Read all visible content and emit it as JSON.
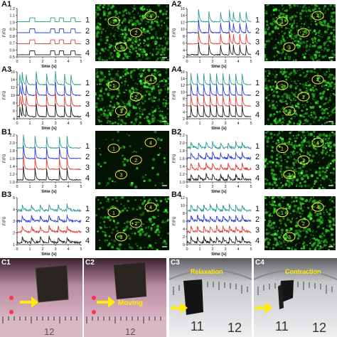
{
  "panels": [
    {
      "id": "A1",
      "label": "A1",
      "ylabel": "F/F0",
      "xlabel": "time (s)",
      "yticks": [
        "1.2",
        "1.1",
        "1.0",
        "0.9",
        "0.8",
        "0.7",
        "0.6",
        "0.5"
      ],
      "xticks": [
        "0",
        "1",
        "2",
        "3",
        "4",
        "5"
      ],
      "trace_numbers": [
        "1",
        "2",
        "3",
        "4"
      ],
      "cells": [
        "1",
        "2",
        "3",
        "4"
      ],
      "peaks": [
        1.0,
        1.05,
        2.6,
        3.3,
        4.2
      ],
      "style": "square"
    },
    {
      "id": "A2",
      "label": "A2",
      "ylabel": "F/F0",
      "xlabel": "time (s)",
      "yticks": [
        "16",
        "14",
        "12",
        "10",
        "8",
        "6",
        "4",
        "2"
      ],
      "xticks": [
        "0",
        "1",
        "2",
        "3",
        "4",
        "5"
      ],
      "trace_numbers": [
        "1",
        "2",
        "3",
        "4"
      ],
      "cells": [
        "1",
        "2",
        "3",
        "4"
      ],
      "peaks": [
        0.9,
        1.7,
        2.6,
        3.3,
        3.6,
        4.1,
        4.6
      ],
      "style": "spike"
    },
    {
      "id": "A3",
      "label": "A3",
      "ylabel": "F/F0",
      "xlabel": "time (s)",
      "yticks": [
        "16",
        "14",
        "12",
        "10",
        "8",
        "6",
        "4"
      ],
      "xticks": [
        "0",
        "1",
        "2",
        "3",
        "4",
        "5"
      ],
      "trace_numbers": [
        "1",
        "2",
        "3",
        "4"
      ],
      "cells": [
        "1",
        "2",
        "3",
        "4"
      ],
      "peaks": [
        0.2,
        0.4,
        0.7,
        1.5,
        2.3,
        3.0,
        3.7,
        4.2
      ],
      "style": "spike"
    },
    {
      "id": "A4",
      "label": "A4",
      "ylabel": "F/F0",
      "xlabel": "time (s)",
      "yticks": [
        "16",
        "14",
        "12",
        "10",
        "8",
        "6",
        "4",
        "2"
      ],
      "xticks": [
        "0",
        "1",
        "2",
        "3",
        "4",
        "5"
      ],
      "trace_numbers": [
        "1",
        "2",
        "3",
        "4"
      ],
      "cells": [
        "1",
        "2",
        "3",
        "4"
      ],
      "peaks": [
        0.3,
        0.8,
        1.3,
        1.8,
        2.3,
        2.8,
        3.3,
        3.8,
        4.3
      ],
      "style": "spike"
    },
    {
      "id": "B1",
      "label": "B1",
      "ylabel": "F/F0",
      "xlabel": "time (s)",
      "yticks": [
        "2.2",
        "2.0",
        "1.8",
        "1.6",
        "1.4",
        "1.2",
        "1.0"
      ],
      "xticks": [
        "0",
        "1",
        "2",
        "3",
        "4",
        "5"
      ],
      "trace_numbers": [
        "1",
        "2",
        "3",
        "4"
      ],
      "cells": [
        "1",
        "2",
        "3",
        "4"
      ],
      "peaks": [
        0.5,
        1.4,
        2.3,
        3.3,
        3.9
      ],
      "style": "spike"
    },
    {
      "id": "B2",
      "label": "B2",
      "ylabel": "F/F0",
      "xlabel": "time (s)",
      "yticks": [
        "2.2",
        "2.0",
        "1.8",
        "1.6",
        "1.4",
        "1.2",
        "1.0"
      ],
      "xticks": [
        "0",
        "1",
        "2",
        "3",
        "4",
        "5"
      ],
      "trace_numbers": [
        "1",
        "2",
        "3",
        "4"
      ],
      "cells": [
        "1",
        "2",
        "3",
        "4"
      ],
      "peaks": [
        0.3,
        0.9,
        1.5,
        2.0,
        2.6,
        3.2,
        3.8,
        4.3
      ],
      "style": "noisy"
    },
    {
      "id": "B3",
      "label": "B3",
      "ylabel": "F/F0",
      "xlabel": "time (s)",
      "yticks": [
        "5",
        "4",
        "3",
        "2",
        "1"
      ],
      "xticks": [
        "0",
        "1",
        "2",
        "3",
        "4",
        "5"
      ],
      "trace_numbers": [
        "1",
        "2",
        "3",
        "4"
      ],
      "cells": [
        "1",
        "2",
        "3",
        "4"
      ],
      "peaks": [
        0.4,
        1.1,
        1.8,
        2.5,
        3.2,
        3.9
      ],
      "style": "noisy"
    },
    {
      "id": "B4",
      "label": "B4",
      "ylabel": "F/F0",
      "xlabel": "time (s)",
      "yticks": [
        "12",
        "10",
        "8",
        "6",
        "4",
        "2",
        "0"
      ],
      "xticks": [
        "0",
        "1",
        "2",
        "3",
        "4",
        "5"
      ],
      "trace_numbers": [
        "1",
        "2",
        "3",
        "4"
      ],
      "cells": [
        "1",
        "2",
        "3",
        "4"
      ],
      "peaks": [
        0.3,
        0.8,
        1.3,
        1.8,
        2.3,
        2.8,
        3.3,
        3.8,
        4.3
      ],
      "style": "noisy"
    }
  ],
  "trace_colors": [
    "#2a9d8f",
    "#2b3fd6",
    "#e0403a",
    "#222222"
  ],
  "photos": [
    {
      "id": "C1",
      "label": "C1",
      "caption": ""
    },
    {
      "id": "C2",
      "label": "C2",
      "caption": "Moving"
    },
    {
      "id": "C3",
      "label": "C3",
      "caption": "Relaxation",
      "ruler_numbers": [
        "11",
        "12"
      ]
    },
    {
      "id": "C4",
      "label": "C4",
      "caption": "Contraction",
      "ruler_numbers": [
        "11",
        "12"
      ]
    }
  ],
  "ruler_numbers_c1": [
    "12"
  ],
  "ruler_numbers_c2": [
    "12"
  ]
}
